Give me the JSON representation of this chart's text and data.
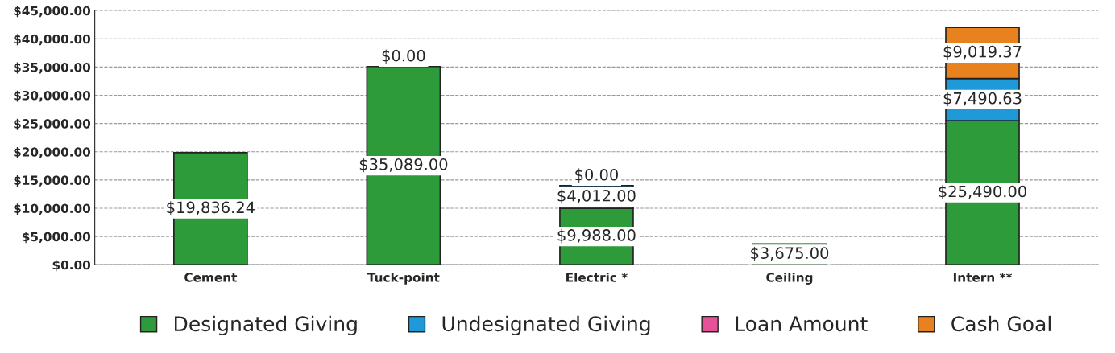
{
  "chart_data": {
    "type": "bar",
    "stacked": true,
    "categories": [
      "Cement",
      "Tuck-point",
      "Electric *",
      "Ceiling",
      "Intern **"
    ],
    "series": [
      {
        "name": "Designated Giving",
        "color": "#2e9b3a",
        "values": [
          19836.24,
          35089,
          9988,
          3675,
          25490
        ],
        "value_labels": [
          "$19,836.24",
          "$35,089.00",
          "$9,988.00",
          "$3,675.00",
          "$25,490.00"
        ]
      },
      {
        "name": "Undesignated Giving",
        "color": "#1f9ad8",
        "values": [
          null,
          0,
          4012,
          null,
          7490.63
        ],
        "value_labels": [
          null,
          "$0.00",
          "$4,012.00",
          null,
          "$7,490.63"
        ]
      },
      {
        "name": "Loan Amount",
        "color": "#e6529a",
        "values": [
          null,
          null,
          0,
          null,
          null
        ],
        "value_labels": [
          null,
          null,
          "$0.00",
          null,
          null
        ]
      },
      {
        "name": "Cash Goal",
        "color": "#e8821f",
        "values": [
          null,
          null,
          null,
          null,
          9019.37
        ],
        "value_labels": [
          null,
          null,
          null,
          null,
          "$9,019.37"
        ]
      }
    ],
    "ylim": [
      0,
      45000
    ],
    "yticks": [
      {
        "value": 0,
        "label": "$0.00"
      },
      {
        "value": 5000,
        "label": "$5,000.00"
      },
      {
        "value": 10000,
        "label": "$10,000.00"
      },
      {
        "value": 15000,
        "label": "$15,000.00"
      },
      {
        "value": 20000,
        "label": "$20,000.00"
      },
      {
        "value": 25000,
        "label": "$25,000.00"
      },
      {
        "value": 30000,
        "label": "$30,000.00"
      },
      {
        "value": 35000,
        "label": "$35,000.00"
      },
      {
        "value": 40000,
        "label": "$40,000.00"
      },
      {
        "value": 45000,
        "label": "$45,000.00"
      }
    ],
    "grid": "y",
    "legend": "bottom"
  }
}
